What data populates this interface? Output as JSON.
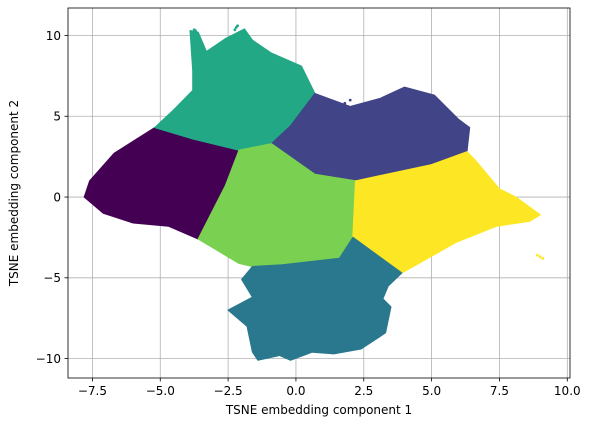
{
  "chart_data": {
    "type": "scatter",
    "title": "",
    "xlabel": "TSNE embedding component 1",
    "ylabel": "TSNE embedding component 2",
    "xlim": [
      -8.4,
      10.1
    ],
    "ylim": [
      -11.2,
      11.7
    ],
    "grid": true,
    "legend": "none",
    "x_ticks": [
      -7.5,
      -5.0,
      -2.5,
      0.0,
      2.5,
      5.0,
      7.5,
      10.0
    ],
    "x_tick_labels": [
      "−7.5",
      "−5.0",
      "−2.5",
      "0.0",
      "2.5",
      "5.0",
      "7.5",
      "10.0"
    ],
    "y_ticks": [
      -10,
      -5,
      0,
      5,
      10
    ],
    "y_tick_labels": [
      "−10",
      "−5",
      "0",
      "5",
      "10"
    ],
    "clusters": [
      {
        "color": "#440154",
        "region": [
          [
            -5.2,
            4.3
          ],
          [
            -3.8,
            3.6
          ],
          [
            -2.1,
            2.9
          ],
          [
            -2.6,
            0.7
          ],
          [
            -3.6,
            -2.6
          ],
          [
            -4.7,
            -1.8
          ],
          [
            -6.0,
            -1.6
          ],
          [
            -7.1,
            -1.0
          ],
          [
            -7.8,
            0.0
          ],
          [
            -7.6,
            1.0
          ],
          [
            -6.7,
            2.7
          ]
        ]
      },
      {
        "color": "#22a884",
        "region": [
          [
            -3.9,
            10.3
          ],
          [
            -3.6,
            10.2
          ],
          [
            -3.3,
            9.0
          ],
          [
            -2.6,
            9.8
          ],
          [
            -1.9,
            10.4
          ],
          [
            -1.6,
            9.7
          ],
          [
            -0.9,
            8.9
          ],
          [
            0.2,
            8.1
          ],
          [
            0.7,
            6.4
          ],
          [
            -0.2,
            4.4
          ],
          [
            -0.9,
            3.3
          ],
          [
            -2.1,
            2.9
          ],
          [
            -3.8,
            3.6
          ],
          [
            -5.2,
            4.3
          ],
          [
            -4.5,
            5.4
          ],
          [
            -3.8,
            6.6
          ],
          [
            -3.8,
            7.8
          ]
        ]
      },
      {
        "color": "#414487",
        "region": [
          [
            0.7,
            6.4
          ],
          [
            2.0,
            5.6
          ],
          [
            3.1,
            6.1
          ],
          [
            4.0,
            6.8
          ],
          [
            5.1,
            6.3
          ],
          [
            6.0,
            4.8
          ],
          [
            6.4,
            4.3
          ],
          [
            6.3,
            2.8
          ],
          [
            5.0,
            2.0
          ],
          [
            2.2,
            1.0
          ],
          [
            0.7,
            1.4
          ],
          [
            -0.9,
            3.3
          ],
          [
            -0.2,
            4.4
          ]
        ]
      },
      {
        "color": "#7ad151",
        "region": [
          [
            -2.1,
            2.9
          ],
          [
            -0.9,
            3.3
          ],
          [
            0.7,
            1.4
          ],
          [
            2.2,
            1.0
          ],
          [
            2.1,
            -2.5
          ],
          [
            1.6,
            -3.8
          ],
          [
            -0.5,
            -4.2
          ],
          [
            -1.6,
            -4.3
          ],
          [
            -2.1,
            -4.1
          ],
          [
            -3.6,
            -2.6
          ],
          [
            -2.6,
            0.7
          ]
        ]
      },
      {
        "color": "#fde725",
        "region": [
          [
            2.2,
            1.0
          ],
          [
            5.0,
            2.0
          ],
          [
            6.3,
            2.8
          ],
          [
            6.6,
            2.3
          ],
          [
            7.5,
            0.5
          ],
          [
            8.1,
            0.0
          ],
          [
            9.0,
            -1.1
          ],
          [
            8.6,
            -1.5
          ],
          [
            7.4,
            -1.8
          ],
          [
            5.9,
            -2.8
          ],
          [
            3.9,
            -4.7
          ],
          [
            2.1,
            -2.5
          ]
        ]
      },
      {
        "color": "#2a788e",
        "region": [
          [
            -1.6,
            -4.3
          ],
          [
            -0.5,
            -4.2
          ],
          [
            1.6,
            -3.8
          ],
          [
            2.1,
            -2.5
          ],
          [
            3.9,
            -4.7
          ],
          [
            3.4,
            -5.5
          ],
          [
            3.2,
            -6.3
          ],
          [
            3.5,
            -6.8
          ],
          [
            3.3,
            -8.4
          ],
          [
            2.4,
            -9.4
          ],
          [
            1.4,
            -9.7
          ],
          [
            0.6,
            -9.6
          ],
          [
            -0.2,
            -10.1
          ],
          [
            -0.6,
            -9.8
          ],
          [
            -1.4,
            -10.1
          ],
          [
            -1.6,
            -9.6
          ],
          [
            -1.8,
            -8.0
          ],
          [
            -2.5,
            -7.0
          ],
          [
            -1.6,
            -6.2
          ],
          [
            -2.0,
            -5.1
          ]
        ]
      }
    ],
    "extra_points": [
      {
        "color": "#22a884",
        "points": [
          [
            -3.75,
            10.35
          ],
          [
            -3.7,
            10.3
          ],
          [
            -2.15,
            10.6
          ],
          [
            -2.2,
            10.5
          ],
          [
            -2.25,
            10.35
          ]
        ]
      },
      {
        "color": "#414487",
        "points": [
          [
            1.8,
            5.8
          ],
          [
            2.1,
            5.5
          ],
          [
            2.0,
            6.0
          ]
        ]
      },
      {
        "color": "#fde725",
        "points": [
          [
            8.9,
            -3.6
          ],
          [
            9.1,
            -3.8
          ],
          [
            9.0,
            -3.7
          ]
        ]
      }
    ]
  }
}
